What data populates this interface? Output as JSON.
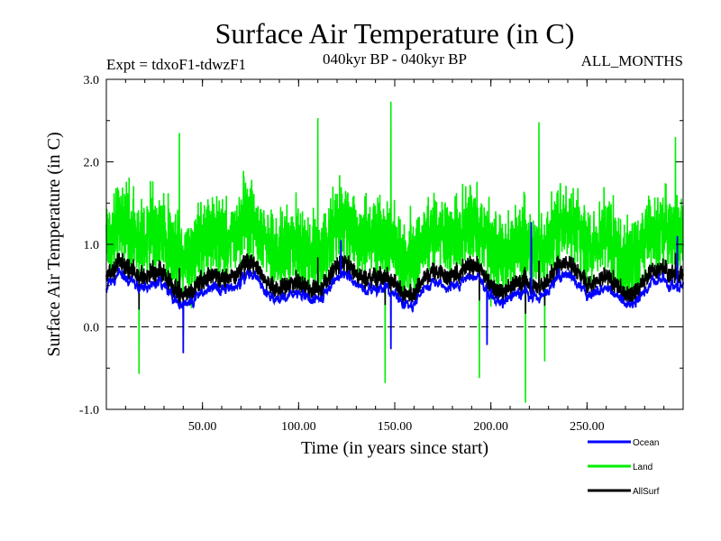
{
  "chart_data": {
    "type": "line",
    "title": "Surface Air Temperature (in C)",
    "subtitle_left": "Expt = tdxoF1-tdwzF1",
    "subtitle_center": "040kyr BP - 040kyr BP",
    "subtitle_right": "ALL_MONTHS",
    "xlabel": "Time (in years since start)",
    "ylabel": "Surface Air Temperature (in C)",
    "xlim": [
      0,
      300
    ],
    "ylim": [
      -1.0,
      3.0
    ],
    "x_ticks": [
      50,
      100,
      150,
      200,
      250
    ],
    "x_tick_labels": [
      "50.00",
      "100.00",
      "150.00",
      "200.00",
      "250.00"
    ],
    "y_ticks": [
      -1.0,
      0.0,
      1.0,
      2.0,
      3.0
    ],
    "y_tick_labels": [
      "-1.0",
      "0.0",
      "1.0",
      "2.0",
      "3.0"
    ],
    "reference_line": 0.0,
    "series": [
      {
        "name": "Land",
        "color": "#00ee00",
        "mean": 1.05,
        "variability": 0.45,
        "notable_points": [
          {
            "x": 148,
            "y": 2.73
          },
          {
            "x": 110,
            "y": 2.53
          },
          {
            "x": 225,
            "y": 2.48
          },
          {
            "x": 296,
            "y": 2.3
          },
          {
            "x": 38,
            "y": 2.35
          },
          {
            "x": 218,
            "y": -0.92
          },
          {
            "x": 145,
            "y": -0.68
          },
          {
            "x": 194,
            "y": -0.62
          },
          {
            "x": 17,
            "y": -0.57
          },
          {
            "x": 228,
            "y": -0.42
          }
        ]
      },
      {
        "name": "Ocean",
        "color": "#0000ff",
        "mean": 0.45,
        "variability": 0.18,
        "notable_points": [
          {
            "x": 221,
            "y": 1.27
          },
          {
            "x": 297,
            "y": 1.1
          },
          {
            "x": 122,
            "y": 1.05
          },
          {
            "x": 40,
            "y": -0.32
          },
          {
            "x": 148,
            "y": -0.27
          },
          {
            "x": 198,
            "y": -0.22
          }
        ]
      },
      {
        "name": "AllSurf",
        "color": "#000000",
        "mean": 0.55,
        "variability": 0.2,
        "notable_points": [
          {
            "x": 221,
            "y": 1.22
          },
          {
            "x": 297,
            "y": 1.05
          },
          {
            "x": 122,
            "y": 1.0
          }
        ]
      }
    ],
    "legend": {
      "placement": "bottom-right",
      "entries": [
        "Ocean",
        "Land",
        "AllSurf"
      ]
    }
  }
}
